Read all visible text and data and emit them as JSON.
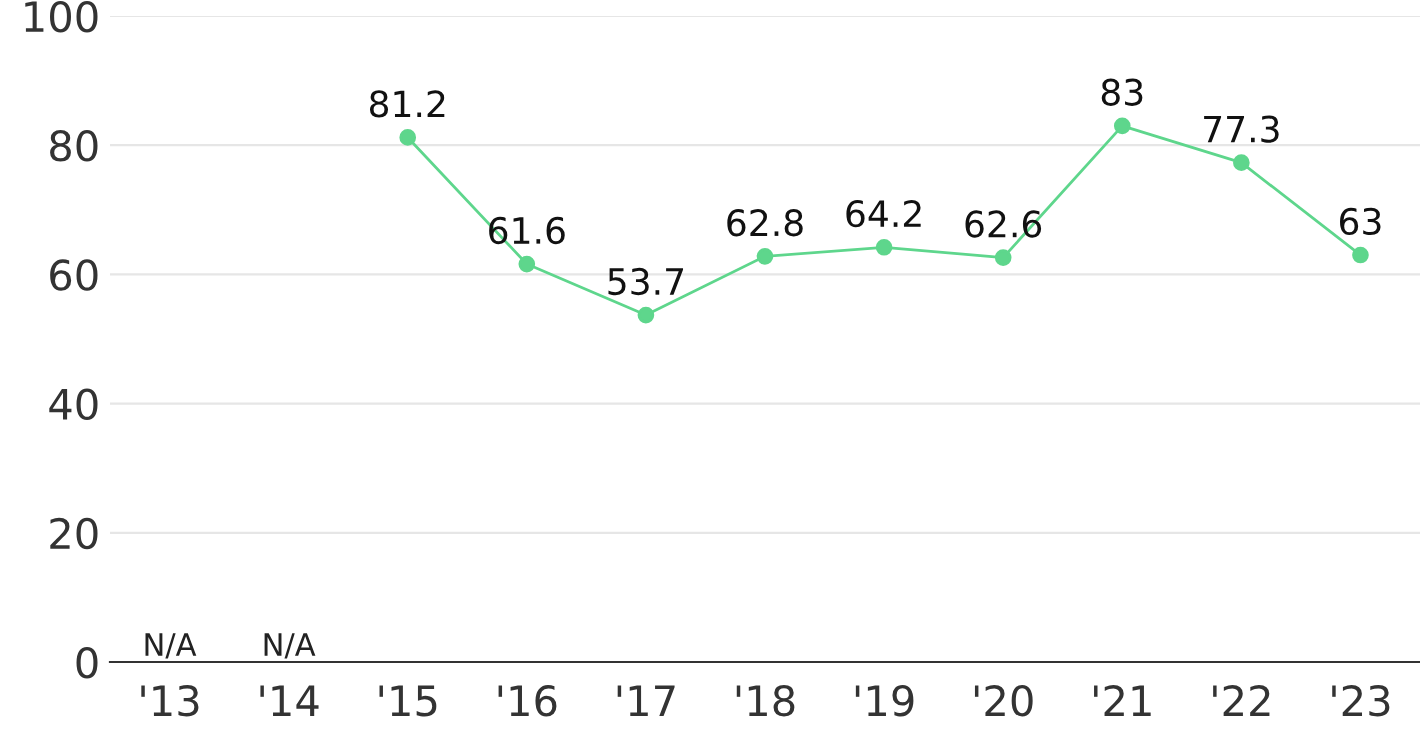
{
  "chart_data": {
    "type": "line",
    "categories": [
      "'13",
      "'14",
      "'15",
      "'16",
      "'17",
      "'18",
      "'19",
      "'20",
      "'21",
      "'22",
      "'23"
    ],
    "series": [
      {
        "color": "#5ed68c",
        "values": [
          null,
          null,
          81.2,
          61.6,
          53.7,
          62.8,
          64.2,
          62.6,
          83,
          77.3,
          63
        ],
        "value_labels": [
          "N/A",
          "N/A",
          "81.2",
          "61.6",
          "53.7",
          "62.8",
          "64.2",
          "62.6",
          "83",
          "77.3",
          "63"
        ]
      }
    ],
    "ylim": [
      0,
      100
    ],
    "yticks": [
      0,
      20,
      40,
      60,
      80,
      100
    ],
    "grid": "y",
    "marker": "circle",
    "line_style": "solid",
    "legend": false
  }
}
